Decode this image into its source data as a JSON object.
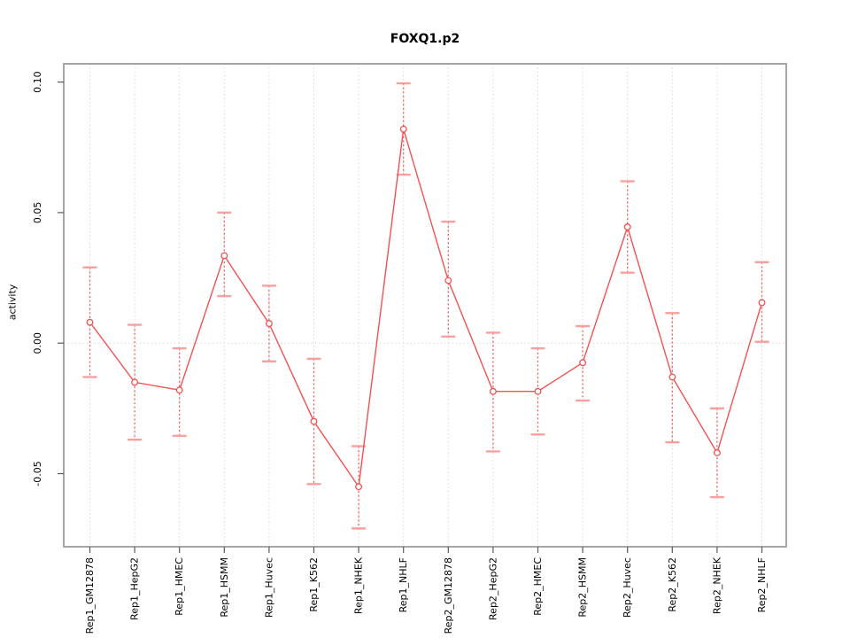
{
  "chart_data": {
    "type": "line",
    "title": "FOXQ1.p2",
    "xlabel": "",
    "ylabel": "activity",
    "categories": [
      "Rep1_GM12878",
      "Rep1_HepG2",
      "Rep1_HMEC",
      "Rep1_HSMM",
      "Rep1_Huvec",
      "Rep1_K562",
      "Rep1_NHEK",
      "Rep1_NHLF",
      "Rep2_GM12878",
      "Rep2_HepG2",
      "Rep2_HMEC",
      "Rep2_HSMM",
      "Rep2_Huvec",
      "Rep2_K562",
      "Rep2_NHEK",
      "Rep2_NHLF"
    ],
    "series": [
      {
        "name": "activity",
        "values": [
          0.008,
          -0.015,
          -0.018,
          0.0335,
          0.0075,
          -0.03,
          -0.055,
          0.082,
          0.024,
          -0.0185,
          -0.0185,
          -0.0075,
          0.0445,
          -0.013,
          -0.042,
          0.0155
        ],
        "error_upper": [
          0.029,
          0.007,
          -0.002,
          0.05,
          0.022,
          -0.006,
          -0.0395,
          0.0995,
          0.0465,
          0.004,
          -0.002,
          0.0065,
          0.062,
          0.0115,
          -0.025,
          0.031
        ],
        "error_lower": [
          -0.013,
          -0.037,
          -0.0355,
          0.018,
          -0.007,
          -0.054,
          -0.071,
          0.0645,
          0.0025,
          -0.0415,
          -0.035,
          -0.022,
          0.027,
          -0.038,
          -0.059,
          0.0005
        ]
      }
    ],
    "ylim": [
      -0.078,
      0.107
    ],
    "yticks": {
      "values": [
        -0.05,
        0.0,
        0.05,
        0.1
      ],
      "labels": [
        "-0.05",
        "0.00",
        "0.05",
        "0.10"
      ]
    },
    "grid": {
      "vertical_per_category": true,
      "horizontal_at_zero": true,
      "style": "dotted"
    },
    "legend": "none",
    "point_style": "open-circle",
    "error_bar_style": "dotted vertical line with solid caps",
    "colors": {
      "line": "#f25252",
      "point_fill": "#ffffff",
      "error_cap": "#f8a0a0",
      "error_line": "#ef6060",
      "grid": "#d8d8d8",
      "box": "#979797",
      "tick": "#5a5a5a",
      "text": "#000000"
    }
  }
}
